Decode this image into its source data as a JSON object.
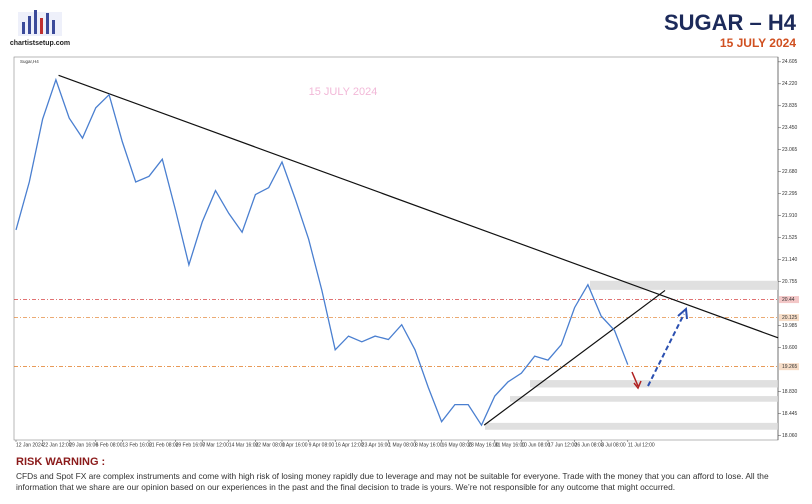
{
  "header": {
    "logo": "chartistsetup.com",
    "title": "SUGAR  –  H4",
    "date": "15 JULY 2024"
  },
  "chart_data": {
    "type": "line",
    "symbol": "Sugar,H4",
    "watermark": "15 JULY 2024",
    "categories": [
      "12 Jan 2024",
      null,
      "22 Jan 12:00",
      null,
      "29 Jan 16:00",
      null,
      "6 Feb 08:00",
      null,
      "13 Feb 16:00",
      null,
      "21 Feb 08:00",
      null,
      "29 Feb 16:00",
      null,
      "7 Mar 12:00",
      null,
      "14 Mar 16:00",
      null,
      "22 Mar 08:00",
      null,
      "1 Apr 16:00",
      null,
      "9 Apr 08:00",
      null,
      "16 Apr 12:00",
      null,
      "23 Apr 16:00",
      null,
      "1 May 08:00",
      null,
      "8 May 16:00",
      null,
      "16 May 08:00",
      null,
      "23 May 16:00",
      null,
      "31 May 16:00",
      null,
      "10 Jun 08:00",
      null,
      "17 Jun 12:00",
      null,
      "26 Jun 08:00",
      null,
      "3 Jul 08:00",
      null,
      "11 Jul 12:00"
    ],
    "series": [
      {
        "name": "Sugar,H4",
        "color": "#4a7fd0",
        "values": [
          21.66,
          22.5,
          23.6,
          24.29,
          23.62,
          23.27,
          23.8,
          24.03,
          23.2,
          22.5,
          22.6,
          22.9,
          22.0,
          21.05,
          21.8,
          22.35,
          21.95,
          21.62,
          22.28,
          22.4,
          22.85,
          22.2,
          21.5,
          20.6,
          19.56,
          19.8,
          19.7,
          19.8,
          19.74,
          20.0,
          19.56,
          18.9,
          18.3,
          18.6,
          18.6,
          18.24,
          18.75,
          19.0,
          19.15,
          19.45,
          19.38,
          19.65,
          20.3,
          20.7,
          20.15,
          19.9,
          19.3
        ]
      }
    ],
    "ylim": [
      17.98,
      24.69
    ],
    "yticks": [
      {
        "value": 24.605,
        "label": "24.605"
      },
      {
        "value": 24.22,
        "label": "24.220"
      },
      {
        "value": 23.835,
        "label": "23.835"
      },
      {
        "value": 23.45,
        "label": "23.450"
      },
      {
        "value": 23.065,
        "label": "23.065"
      },
      {
        "value": 22.68,
        "label": "22.680"
      },
      {
        "value": 22.295,
        "label": "22.295"
      },
      {
        "value": 21.91,
        "label": "21.910"
      },
      {
        "value": 21.525,
        "label": "21.525"
      },
      {
        "value": 21.14,
        "label": "21.140"
      },
      {
        "value": 20.755,
        "label": "20.755"
      },
      {
        "value": 19.985,
        "label": "19.985"
      },
      {
        "value": 19.6,
        "label": "19.600"
      },
      {
        "value": 18.83,
        "label": "18.830"
      },
      {
        "value": 18.445,
        "label": "18.445"
      },
      {
        "value": 18.06,
        "label": "18.060"
      }
    ],
    "levels": [
      {
        "value": 20.44,
        "color": "#d02020"
      },
      {
        "value": 20.125,
        "color": "#e07820"
      },
      {
        "value": 19.265,
        "color": "#e07820"
      }
    ],
    "zones": [
      [
        20.61,
        20.77
      ],
      [
        18.9,
        19.03
      ],
      [
        18.65,
        18.75
      ],
      [
        18.16,
        18.28
      ]
    ],
    "trendlines": [
      [
        [
          3.2,
          24.37
        ],
        [
          57.3,
          19.77
        ]
      ],
      [
        [
          35.2,
          18.24
        ],
        [
          48.8,
          20.6
        ]
      ]
    ]
  },
  "risk": {
    "title": "RISK WARNING :",
    "text": "CFDs and Spot FX are complex instruments and come with high risk of losing money rapidly due to leverage and may not be suitable for everyone. Trade with the money that you can afford to lose. All the information that we  share are our opinion based on our experiences in the past and the final decision to trade is yours. We’re not responsible for any outcome that might occurred."
  }
}
